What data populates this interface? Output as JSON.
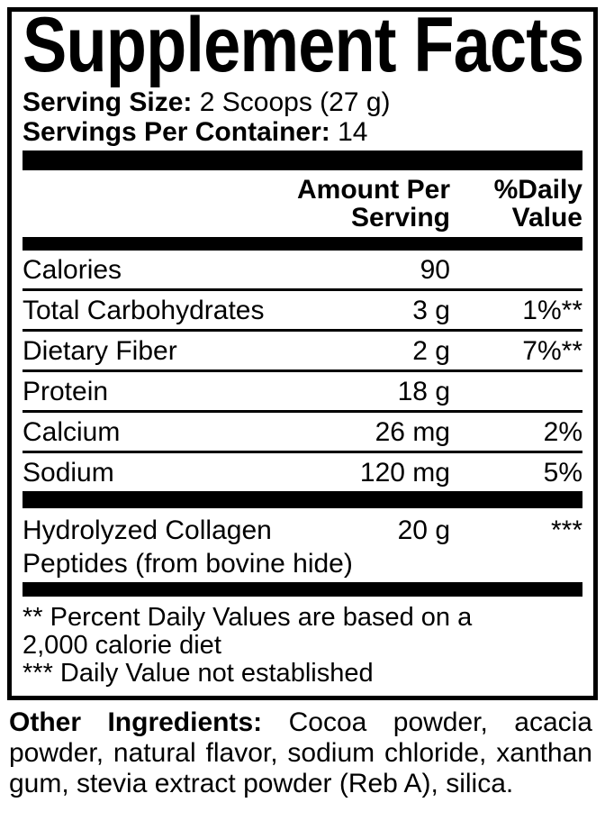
{
  "label": {
    "title": "Supplement Facts",
    "serving_size": {
      "label": "Serving Size:",
      "value": "2 Scoops (27 g)"
    },
    "servings_per_container": {
      "label": "Servings Per Container:",
      "value": "14"
    },
    "columns": {
      "amount_header": "Amount Per Serving",
      "daily_header": "%Daily Value"
    },
    "rows": [
      {
        "label": "Calories",
        "amount": "90",
        "daily": ""
      },
      {
        "label": "Total Carbohydrates",
        "amount": "3 g",
        "daily": "1%**"
      },
      {
        "label": "Dietary Fiber",
        "amount": "2 g",
        "daily": "7%**"
      },
      {
        "label": "Protein",
        "amount": "18 g",
        "daily": ""
      },
      {
        "label": "Calcium",
        "amount": "26 mg",
        "daily": "2%"
      },
      {
        "label": "Sodium",
        "amount": "120 mg",
        "daily": "5%"
      }
    ],
    "collagen_row": {
      "label_line1": "Hydrolyzed Collagen",
      "label_line2": "Peptides (from bovine hide)",
      "amount": "20 g",
      "daily": "***"
    },
    "footnotes": [
      "** Percent Daily Values are based on a",
      "2,000 calorie diet",
      "*** Daily Value not established"
    ],
    "other_ingredients": {
      "label": "Other Ingredients:",
      "text": "Cocoa powder, acacia powder, natural flavor, sodium chloride, xanthan gum, stevia extract powder (Reb A), silica."
    },
    "colors": {
      "ink": "#000000",
      "background": "#ffffff"
    }
  }
}
